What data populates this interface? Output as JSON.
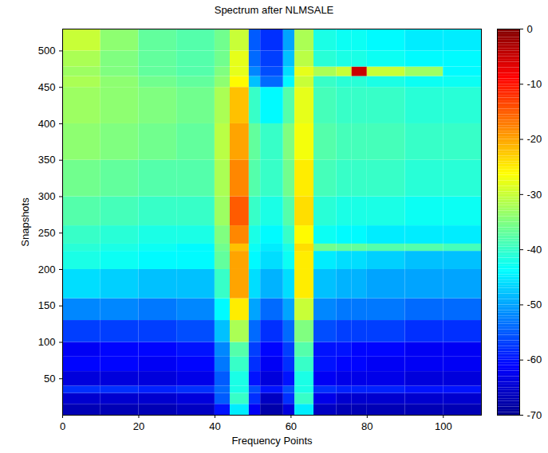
{
  "chart_data": {
    "type": "heatmap",
    "title": "Spectrum after NLMSALE",
    "x_label": "Frequency Points",
    "y_label": "Snapshots",
    "xlim": [
      0,
      110
    ],
    "ylim": [
      0,
      530
    ],
    "xticks": [
      0,
      20,
      40,
      60,
      80,
      100
    ],
    "yticks": [
      50,
      100,
      150,
      200,
      250,
      300,
      350,
      400,
      450,
      500
    ],
    "x_edges": [
      0,
      10,
      20,
      30,
      40,
      44,
      49,
      52,
      58,
      61,
      66,
      72,
      76,
      80,
      90,
      100,
      110
    ],
    "y_edges": [
      0,
      15,
      30,
      40,
      60,
      80,
      100,
      130,
      160,
      200,
      225,
      235,
      260,
      300,
      350,
      400,
      450,
      465,
      478,
      500,
      530
    ],
    "cells": [
      [
        -67,
        -67,
        -67,
        -66,
        -60,
        -45,
        -62,
        -68,
        -64,
        -45,
        -66,
        -67,
        -67,
        -67,
        -67,
        -67
      ],
      [
        -65,
        -65,
        -65,
        -64,
        -55,
        -40,
        -58,
        -66,
        -58,
        -40,
        -63,
        -65,
        -65,
        -65,
        -65,
        -65
      ],
      [
        -58,
        -58,
        -59,
        -58,
        -54,
        -42,
        -56,
        -60,
        -56,
        -42,
        -58,
        -59,
        -59,
        -59,
        -60,
        -60
      ],
      [
        -64,
        -64,
        -64,
        -63,
        -55,
        -42,
        -60,
        -64,
        -60,
        -42,
        -62,
        -63,
        -63,
        -63,
        -64,
        -64
      ],
      [
        -61,
        -61,
        -62,
        -61,
        -53,
        -40,
        -58,
        -62,
        -58,
        -40,
        -60,
        -61,
        -61,
        -62,
        -62,
        -62
      ],
      [
        -62,
        -61,
        -61,
        -60,
        -52,
        -38,
        -57,
        -61,
        -57,
        -38,
        -60,
        -60,
        -61,
        -61,
        -62,
        -62
      ],
      [
        -57,
        -57,
        -57,
        -56,
        -48,
        -32,
        -54,
        -58,
        -54,
        -35,
        -56,
        -57,
        -57,
        -57,
        -58,
        -58
      ],
      [
        -52,
        -52,
        -53,
        -52,
        -44,
        -25,
        -50,
        -54,
        -50,
        -30,
        -52,
        -53,
        -53,
        -53,
        -54,
        -54
      ],
      [
        -46,
        -47,
        -48,
        -48,
        -40,
        -20,
        -46,
        -49,
        -46,
        -25,
        -48,
        -49,
        -49,
        -50,
        -50,
        -50
      ],
      [
        -42,
        -43,
        -44,
        -44,
        -37,
        -20,
        -44,
        -46,
        -43,
        -25,
        -45,
        -46,
        -46,
        -47,
        -48,
        -48
      ],
      [
        -41,
        -42,
        -43,
        -44,
        -36,
        -22,
        -43,
        -45,
        -42,
        -24,
        -36,
        -37,
        -37,
        -38,
        -38,
        -39
      ],
      [
        -40,
        -41,
        -42,
        -42,
        -35,
        -18,
        -42,
        -44,
        -40,
        -26,
        -43,
        -44,
        -44,
        -45,
        -45,
        -45
      ],
      [
        -38,
        -39,
        -40,
        -40,
        -33,
        -15,
        -40,
        -42,
        -38,
        -24,
        -41,
        -42,
        -42,
        -42,
        -43,
        -43
      ],
      [
        -36,
        -37,
        -38,
        -38,
        -32,
        -18,
        -38,
        -40,
        -36,
        -25,
        -39,
        -40,
        -40,
        -40,
        -41,
        -41
      ],
      [
        -34,
        -35,
        -36,
        -37,
        -31,
        -20,
        -37,
        -40,
        -35,
        -27,
        -38,
        -39,
        -39,
        -39,
        -40,
        -40
      ],
      [
        -33,
        -34,
        -35,
        -36,
        -32,
        -22,
        -40,
        -44,
        -38,
        -28,
        -39,
        -40,
        -40,
        -40,
        -41,
        -41
      ],
      [
        -32,
        -34,
        -36,
        -37,
        -34,
        -26,
        -48,
        -54,
        -44,
        -30,
        -40,
        -41,
        -41,
        -42,
        -43,
        -43
      ],
      [
        -33,
        -35,
        -37,
        -38,
        -35,
        -28,
        -52,
        -56,
        -46,
        -28,
        -32,
        -30,
        -5,
        -30,
        -33,
        -44
      ],
      [
        -32,
        -35,
        -37,
        -38,
        -36,
        -28,
        -54,
        -57,
        -48,
        -31,
        -41,
        -42,
        -42,
        -43,
        -44,
        -44
      ],
      [
        -30,
        -34,
        -37,
        -38,
        -36,
        -30,
        -55,
        -58,
        -50,
        -32,
        -42,
        -43,
        -43,
        -44,
        -45,
        -45
      ]
    ],
    "color_range": [
      -70,
      0
    ],
    "color_ticks": [
      0,
      -10,
      -20,
      -30,
      -40,
      -50,
      -60,
      -70
    ]
  }
}
